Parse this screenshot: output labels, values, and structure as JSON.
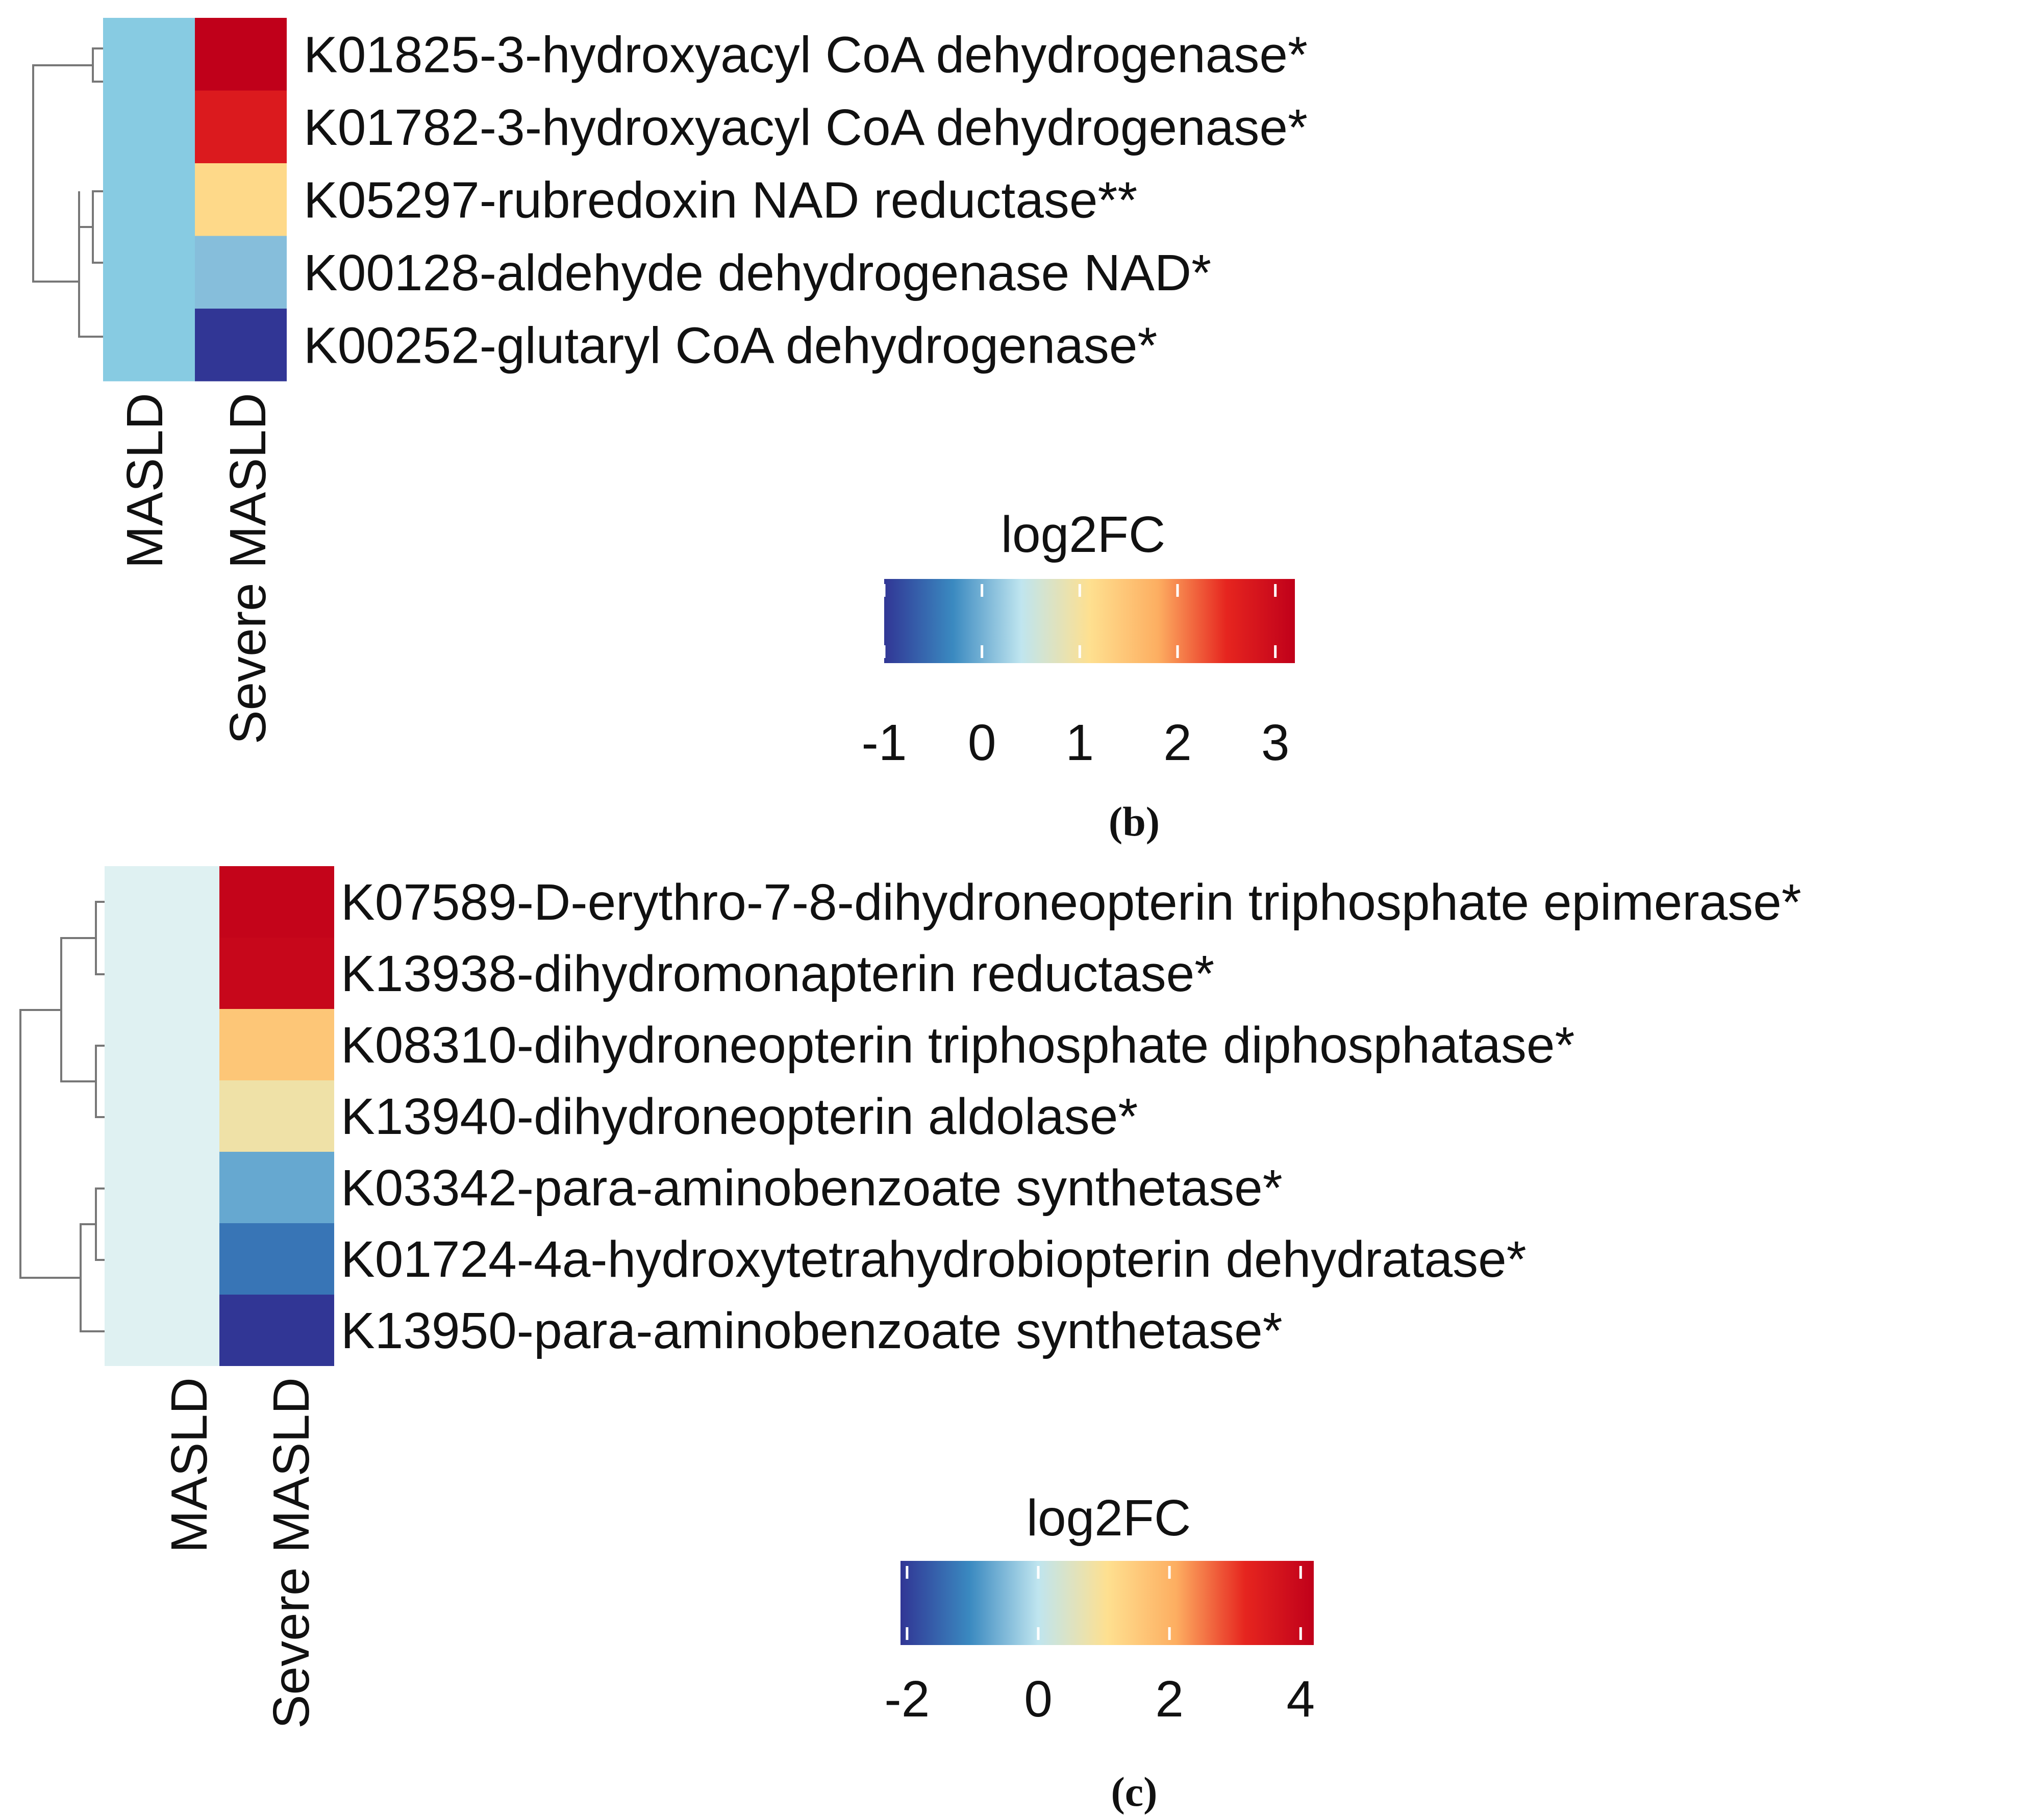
{
  "chart_data": [
    {
      "type": "heatmap",
      "panel_label": "(b)",
      "columns": [
        "MASLD",
        "Severe MASLD"
      ],
      "rows": [
        "K01825-3-hydroxyacyl CoA dehydrogenase*",
        "K01782-3-hydroxyacyl CoA dehydrogenase*",
        "K05297-rubredoxin NAD reductase**",
        "K00128-aldehyde dehydrogenase NAD*",
        "K00252-glutaryl CoA dehydrogenase*"
      ],
      "values": [
        [
          0,
          3.2
        ],
        [
          0,
          2.7
        ],
        [
          0,
          1.2
        ],
        [
          0,
          0.1
        ],
        [
          0,
          -1.0
        ]
      ],
      "colorbar": {
        "title": "log2FC",
        "ticks": [
          "-1",
          "0",
          "1",
          "2",
          "3"
        ],
        "range": [
          -1,
          3.2
        ]
      },
      "colors": [
        "#313695",
        "#3a89c0",
        "#bfe5ef",
        "#fee090",
        "#fdae61",
        "#e6251f",
        "#c0001a"
      ]
    },
    {
      "type": "heatmap",
      "panel_label": "(c)",
      "columns": [
        "MASLD",
        "Severe MASLD"
      ],
      "rows": [
        "K07589-D-erythro-7-8-dihydroneopterin triphosphate epimerase*",
        "K13938-dihydromonapterin reductase*",
        "K08310-dihydroneopterin triphosphate diphosphatase*",
        "K13940-dihydroneopterin aldolase*",
        "K03342-para-aminobenzoate synthetase*",
        "K01724-4a-hydroxytetrahydrobiopterin dehydratase*",
        "K13950-para-aminobenzoate synthetase*"
      ],
      "values": [
        [
          0,
          4.1
        ],
        [
          0,
          4.0
        ],
        [
          0,
          1.6
        ],
        [
          0,
          0.8
        ],
        [
          0,
          -0.7
        ],
        [
          0,
          -1.3
        ],
        [
          0,
          -2.1
        ]
      ],
      "colorbar": {
        "title": "log2FC",
        "ticks": [
          "-2",
          "0",
          "2",
          "4"
        ],
        "range": [
          -2.1,
          4.2
        ]
      },
      "colors": [
        "#313695",
        "#3a89c0",
        "#bfe5ef",
        "#fee090",
        "#fdae61",
        "#e6251f",
        "#c0001a"
      ]
    }
  ]
}
